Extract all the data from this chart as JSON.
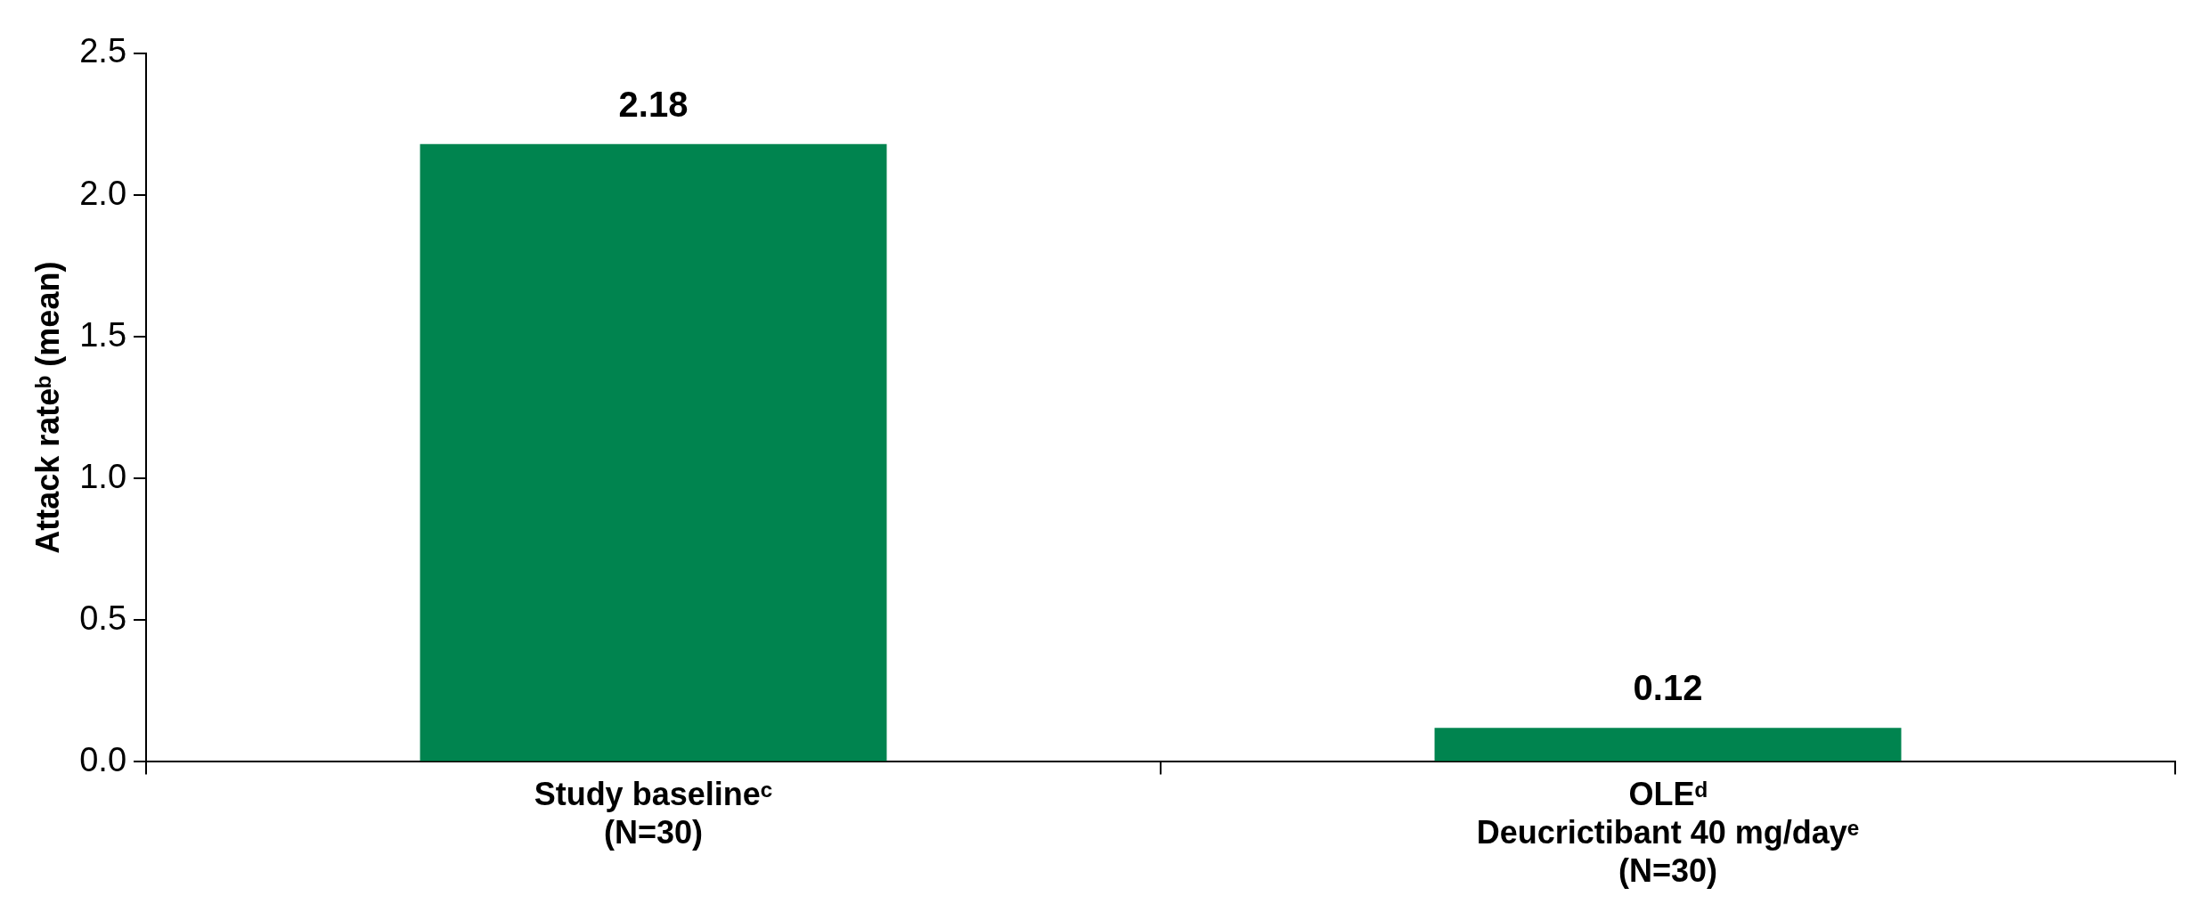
{
  "chart_data": {
    "type": "bar",
    "ylabel": "Attack rateᵇ (mean)",
    "categories": [
      "Study baselineᶜ\n(N=30)",
      "OLEᵈ\nDeucrictibant 40 mg/dayᵉ\n(N=30)"
    ],
    "values": [
      2.18,
      0.12
    ],
    "colors": [
      "#00844f",
      "#00844f"
    ],
    "ylim": [
      0,
      2.5
    ],
    "yticks": [
      {
        "value": 0,
        "label": "0.0"
      },
      {
        "value": 0.5,
        "label": "0.5"
      },
      {
        "value": 1,
        "label": "1.0"
      },
      {
        "value": 1.5,
        "label": "1.5"
      },
      {
        "value": 2,
        "label": "2.0"
      },
      {
        "value": 2.5,
        "label": "2.5"
      }
    ],
    "grid": false,
    "legend": false,
    "data_labels": true
  }
}
